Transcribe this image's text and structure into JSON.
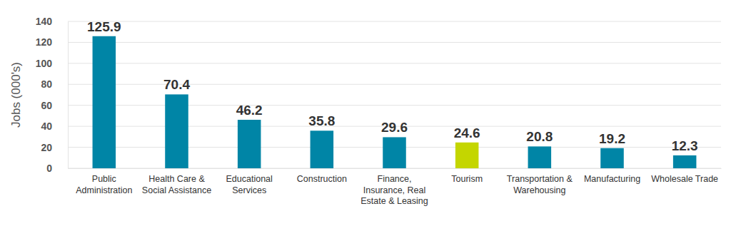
{
  "chart_data": {
    "type": "bar",
    "y_label": "Jobs (000's)",
    "categories": [
      "Public Administration",
      "Health Care & Social Assistance",
      "Educational Services",
      "Construction",
      "Finance, Insurance, Real Estate & Leasing",
      "Tourism",
      "Transportation & Warehousing",
      "Manufacturing",
      "Wholesale Trade"
    ],
    "values": [
      125.9,
      70.4,
      46.2,
      35.8,
      29.6,
      24.6,
      20.8,
      19.2,
      12.3
    ],
    "colors": [
      "#0085a6",
      "#0085a6",
      "#0085a6",
      "#0085a6",
      "#0085a6",
      "#c4d600",
      "#0085a6",
      "#0085a6",
      "#0085a6"
    ],
    "ylim": [
      0,
      140
    ],
    "yticks": [
      0,
      20,
      40,
      60,
      80,
      100,
      120,
      140
    ],
    "grid": true,
    "data_labels": true
  }
}
